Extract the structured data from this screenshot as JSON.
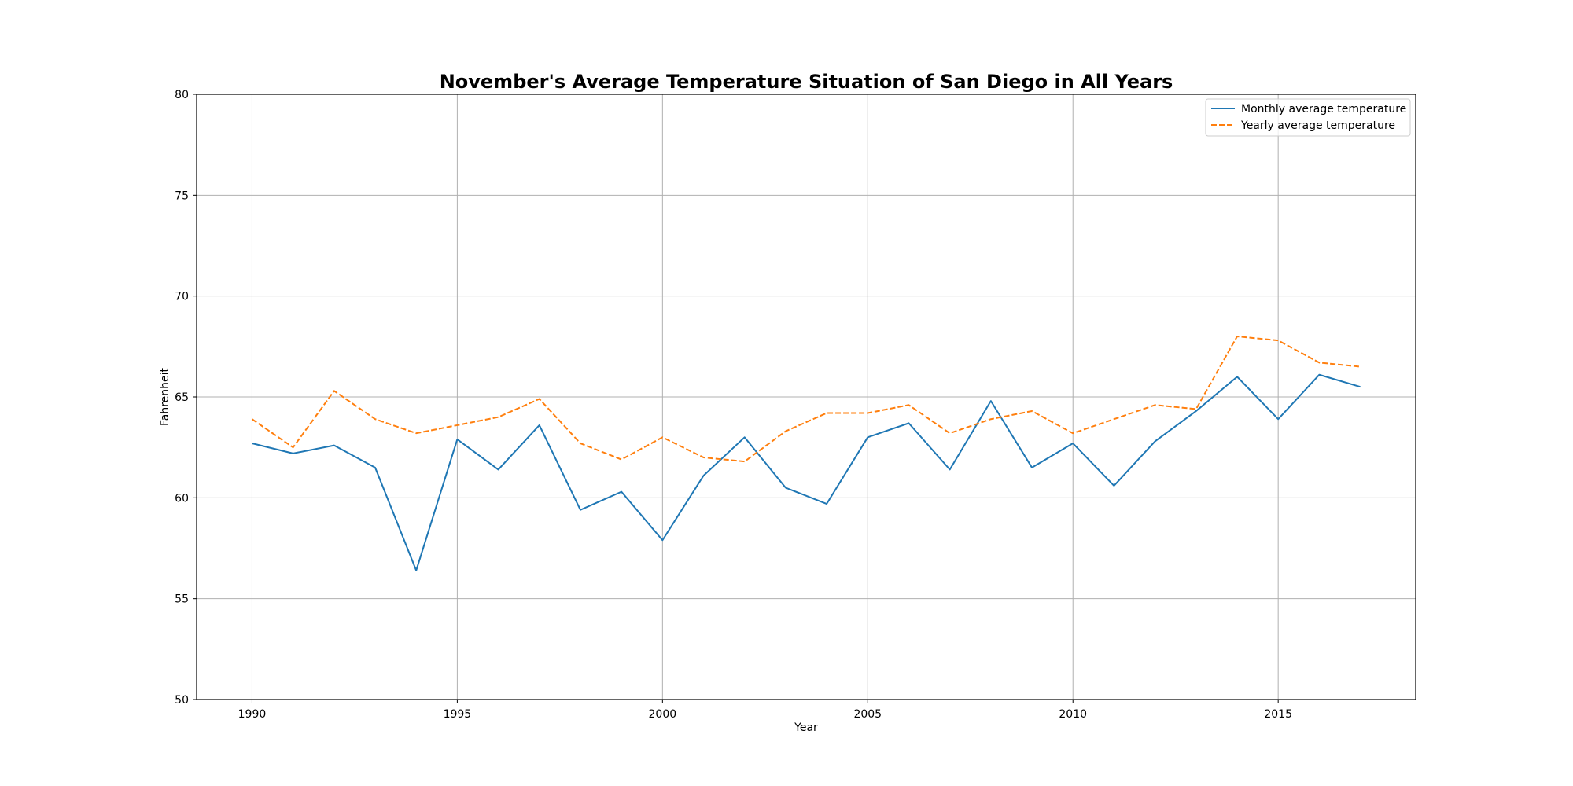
{
  "chart_data": {
    "type": "line",
    "title": "November's Average Temperature Situation of San Diego in All Years",
    "xlabel": "Year",
    "ylabel": "Fahrenheit",
    "xlim": [
      1988.65,
      2018.35
    ],
    "ylim": [
      50,
      80
    ],
    "xticks": [
      1990,
      1995,
      2000,
      2005,
      2010,
      2015
    ],
    "yticks": [
      50,
      55,
      60,
      65,
      70,
      75,
      80
    ],
    "grid": true,
    "legend_position": "top-right",
    "x": [
      1990,
      1991,
      1992,
      1993,
      1994,
      1995,
      1996,
      1997,
      1998,
      1999,
      2000,
      2001,
      2002,
      2003,
      2004,
      2005,
      2006,
      2007,
      2008,
      2009,
      2010,
      2011,
      2012,
      2013,
      2014,
      2015,
      2016,
      2017
    ],
    "series": [
      {
        "name": "Monthly average temperature",
        "color": "#1f77b4",
        "style": "solid",
        "values": [
          62.7,
          62.2,
          62.6,
          61.5,
          56.4,
          62.9,
          61.4,
          63.6,
          59.4,
          60.3,
          57.9,
          61.1,
          63.0,
          60.5,
          59.7,
          63.0,
          63.7,
          61.4,
          64.8,
          61.5,
          62.7,
          60.6,
          62.8,
          64.3,
          66.0,
          63.9,
          66.1,
          65.5
        ]
      },
      {
        "name": "Yearly average temperature",
        "color": "#ff7f0e",
        "style": "dashed",
        "values": [
          63.9,
          62.5,
          65.3,
          63.9,
          63.2,
          63.6,
          64.0,
          64.9,
          62.7,
          61.9,
          63.0,
          62.0,
          61.8,
          63.3,
          64.2,
          64.2,
          64.6,
          63.2,
          63.9,
          64.3,
          63.2,
          63.9,
          64.6,
          64.4,
          68.0,
          67.8,
          66.7,
          66.5
        ]
      }
    ]
  }
}
